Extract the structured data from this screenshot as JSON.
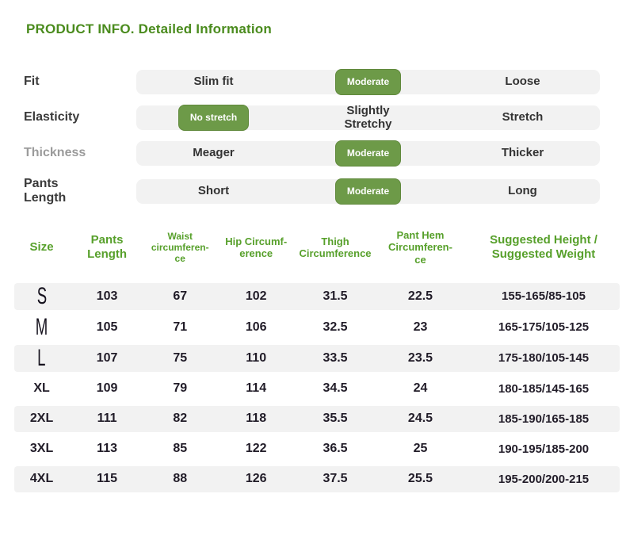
{
  "page": {
    "title": "PRODUCT INFO. Detailed Information"
  },
  "colors": {
    "title_green": "#4a8b1d",
    "table_header_green": "#57a02b",
    "badge_green": "#6d9a48",
    "badge_border_green": "#60893c",
    "scale_bar_bg": "#f2f2f2",
    "row_alt_bg": "#f2f2f2",
    "text_dark": "#333333",
    "muted_label_gray": "#9b9b9b"
  },
  "attributes": [
    {
      "label": "Fit",
      "options": [
        "Slim fit",
        "Moderate",
        "Loose"
      ],
      "selected_index": 1,
      "selected_label": "Moderate"
    },
    {
      "label": "Elasticity",
      "options": [
        "No stretch",
        "Slightly\nStretchy",
        "Stretch"
      ],
      "selected_index": 0,
      "selected_label": "No stretch"
    },
    {
      "label": "Thickness",
      "options": [
        "Meager",
        "Moderate",
        "Thicker"
      ],
      "selected_index": 1,
      "selected_label": "Moderate"
    },
    {
      "label": "Pants\nLength",
      "options": [
        "Short",
        "Moderate",
        "Long"
      ],
      "selected_index": 1,
      "selected_label": "Moderate"
    }
  ],
  "size_table": {
    "headers": [
      "Size",
      "Pants\nLength",
      "Waist\ncircumferen-\nce",
      "Hip Circumf-\nerence",
      "Thigh\nCircumference",
      "Pant Hem\nCircumferen-\nce",
      "Suggested Height /\nSuggested Weight"
    ],
    "rows": [
      {
        "size": "S",
        "values": [
          "103",
          "67",
          "102",
          "31.5",
          "22.5",
          "155-165/85-105"
        ]
      },
      {
        "size": "M",
        "values": [
          "105",
          "71",
          "106",
          "32.5",
          "23",
          "165-175/105-125"
        ]
      },
      {
        "size": "L",
        "values": [
          "107",
          "75",
          "110",
          "33.5",
          "23.5",
          "175-180/105-145"
        ]
      },
      {
        "size": "XL",
        "values": [
          "109",
          "79",
          "114",
          "34.5",
          "24",
          "180-185/145-165"
        ]
      },
      {
        "size": "2XL",
        "values": [
          "111",
          "82",
          "118",
          "35.5",
          "24.5",
          "185-190/165-185"
        ]
      },
      {
        "size": "3XL",
        "values": [
          "113",
          "85",
          "122",
          "36.5",
          "25",
          "190-195/185-200"
        ]
      },
      {
        "size": "4XL",
        "values": [
          "115",
          "88",
          "126",
          "37.5",
          "25.5",
          "195-200/200-215"
        ]
      }
    ]
  }
}
